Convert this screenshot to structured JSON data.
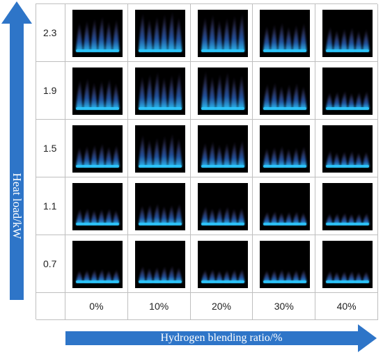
{
  "y_axis": {
    "label": "Heat load/kW",
    "rows": [
      "2.3",
      "1.9",
      "1.5",
      "1.1",
      "0.7"
    ]
  },
  "x_axis": {
    "label": "Hydrogen blending ratio/%",
    "columns": [
      "0%",
      "10%",
      "20%",
      "30%",
      "40%"
    ]
  },
  "colors": {
    "arrow": "#2e75c8",
    "flame_base": "#2ec9ff",
    "flame_plume": "#9a7bd8",
    "grid_line": "#bfbfbf"
  },
  "flames": [
    [
      0.85,
      1.0,
      0.95,
      0.7,
      0.55
    ],
    [
      0.75,
      0.95,
      0.95,
      0.6,
      0.35
    ],
    [
      0.5,
      0.8,
      0.6,
      0.45,
      0.3
    ],
    [
      0.3,
      0.45,
      0.35,
      0.2,
      0.15
    ],
    [
      0.2,
      0.3,
      0.2,
      0.2,
      0.15
    ]
  ]
}
